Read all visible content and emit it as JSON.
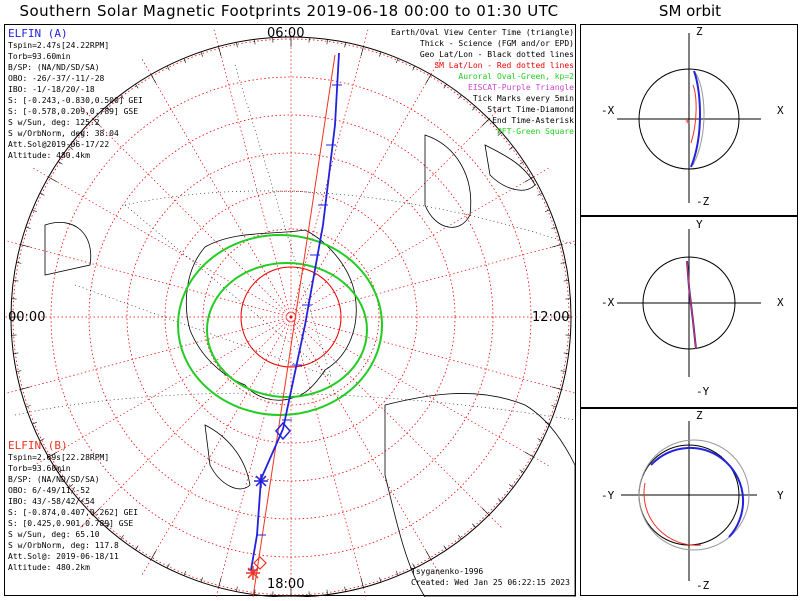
{
  "title": "Southern Solar Magnetic Footprints 2019-06-18 00:00 to 01:30 UTC",
  "orbit_title": "SM orbit",
  "hour_labels": {
    "top": "06:00",
    "left": "00:00",
    "right": "12:00",
    "bottom": "18:00"
  },
  "elfin_a": {
    "name": "ELFIN (A)",
    "color": "#2222dd",
    "lines": [
      "Tspin=2.47s[24.22RPM]",
      "Torb=93.60min",
      "B/SP: (NA/ND/SD/SA)",
      "OBO: -26/-37/-11/-28",
      "IBO: -1/-18/20/-18",
      "S: [-0.243,-0.830,0.500] GEI",
      "S: [-0.578,0.209,0.789] GSE",
      "S w/Sun, deg: 125.2",
      "S w/OrbNorm, deg: 38.04",
      "Att.Sol@2019-06-17/22",
      "Altitude: 480.4km"
    ]
  },
  "elfin_b": {
    "name": "ELFIN (B)",
    "color": "#ee3322",
    "lines": [
      "Tspin=2.69s[22.28RPM]",
      "Torb=93.60min",
      "B/SP: (NA/ND/SD/SA)",
      "OBO: 6/-49/11/-52",
      "IBO: 43/-58/42/-54",
      "S: [-0.874,0.407,0.262] GEI",
      "S: [0.425,0.901,0.789] GSE",
      "S w/Sun, deg: 65.10",
      "S w/OrbNorm, deg: 117.8",
      "Att.Sol@: 2019-06-18/11",
      "Altitude: 480.2km"
    ]
  },
  "legend": [
    {
      "text": "Earth/Oval View Center Time (triangle)",
      "color": "#000000"
    },
    {
      "text": "Thick - Science (FGM and/or EPD)",
      "color": "#000000"
    },
    {
      "text": "Geo Lat/Lon - Black dotted lines",
      "color": "#000000"
    },
    {
      "text": "SM Lat/Lon - Red dotted lines",
      "color": "#ee0000"
    },
    {
      "text": "Auroral Oval-Green, kp=2",
      "color": "#22cc22"
    },
    {
      "text": "EISCAT-Purple Triangle",
      "color": "#cc44cc"
    },
    {
      "text": "Tick Marks every 5min",
      "color": "#000000"
    },
    {
      "text": "Start Time-Diamond",
      "color": "#000000"
    },
    {
      "text": "End Time-Asterisk",
      "color": "#000000"
    },
    {
      "text": "PFT-Green Square",
      "color": "#22cc22"
    }
  ],
  "footer": {
    "model": "Tsyganenko-1996",
    "created": "Created: Wed Jan 25 06:22:15 2023"
  },
  "orbit_panels": [
    {
      "top": "Z",
      "bottom": "-Z",
      "left": "-X",
      "right": "X"
    },
    {
      "top": "Y",
      "bottom": "-Y",
      "left": "-X",
      "right": "X"
    },
    {
      "top": "Z",
      "bottom": "-Z",
      "left": "-Y",
      "right": "Y"
    }
  ],
  "colors": {
    "sm_grid": "#ee0000",
    "auroral_oval": "#22cc22",
    "elfin_a_track": "#2222dd",
    "elfin_b_track": "#ee3322",
    "coast": "#000000"
  }
}
